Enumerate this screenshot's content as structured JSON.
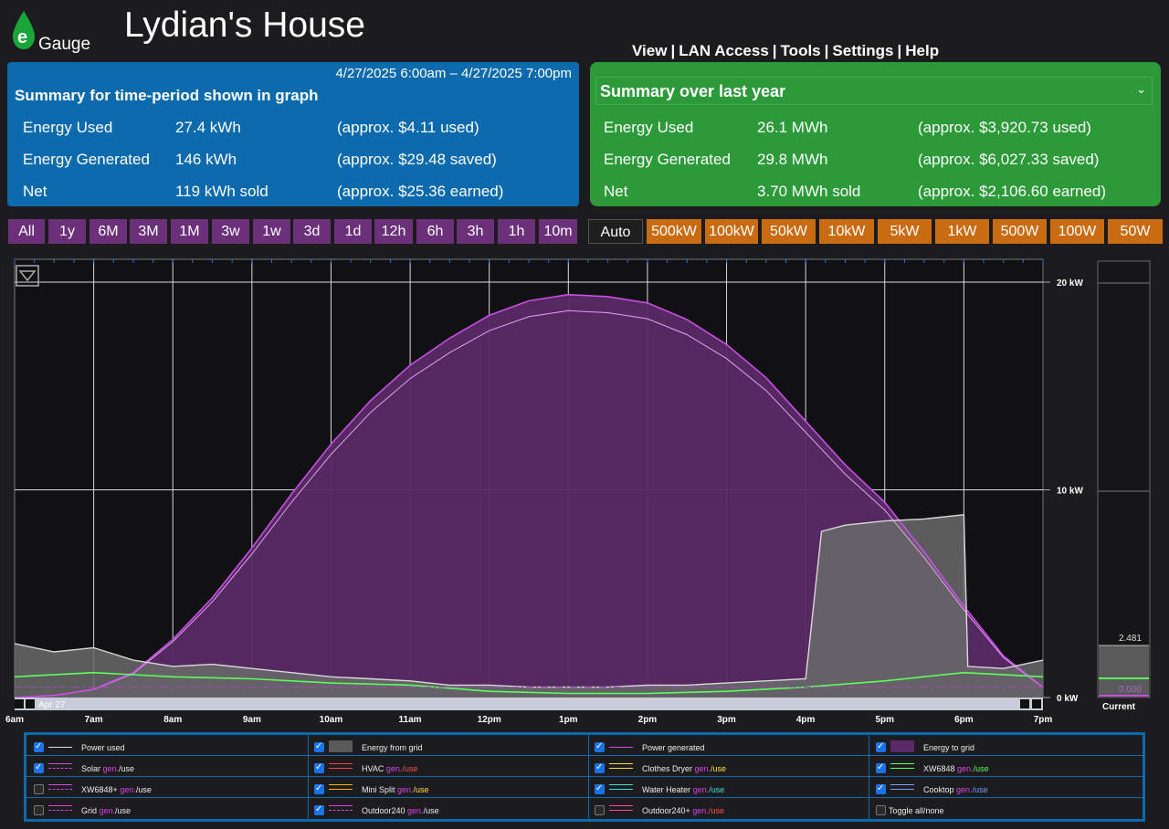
{
  "app": {
    "logo_text": "eGauge",
    "title": "Lydian's House"
  },
  "nav": {
    "view": "View",
    "lan": "LAN Access",
    "tools": "Tools",
    "settings": "Settings",
    "help": "Help"
  },
  "period_summary": {
    "date_range": "4/27/2025 6:00am – 4/27/2025 7:00pm",
    "heading": "Summary for time-period shown in graph",
    "rows": [
      {
        "label": "Energy Used",
        "value": "27.4 kWh",
        "note": "(approx. $4.11 used)"
      },
      {
        "label": "Energy Generated",
        "value": "146 kWh",
        "note": "(approx. $29.48 saved)"
      },
      {
        "label": "Net",
        "value": "119 kWh sold",
        "note": "(approx. $25.36 earned)"
      }
    ]
  },
  "year_summary": {
    "heading": "Summary over last year",
    "dropdown_icon": "chevron-down",
    "rows": [
      {
        "label": "Energy Used",
        "value": "26.1 MWh",
        "note": "(approx. $3,920.73 used)"
      },
      {
        "label": "Energy Generated",
        "value": "29.8 MWh",
        "note": "(approx. $6,027.33 saved)"
      },
      {
        "label": "Net",
        "value": "3.70 MWh sold",
        "note": "(approx. $2,106.60 earned)"
      }
    ]
  },
  "time_buttons": [
    "All",
    "1y",
    "6M",
    "3M",
    "1M",
    "3w",
    "1w",
    "3d",
    "1d",
    "12h",
    "6h",
    "3h",
    "1h",
    "10m"
  ],
  "scale_buttons": [
    "Auto",
    "500kW",
    "100kW",
    "50kW",
    "10kW",
    "5kW",
    "1kW",
    "500W",
    "100W",
    "50W"
  ],
  "colors": {
    "purple_button": "#6c2f7a",
    "orange_button": "#c86b12",
    "panel_blue": "#0c6aad",
    "panel_green": "#2d9a3a",
    "generated": "#c94ee6",
    "fill_grid": "#5a2a66"
  },
  "chart_data": {
    "type": "line",
    "date_label": "Apr 27",
    "x_ticks": [
      "6am",
      "7am",
      "8am",
      "9am",
      "10am",
      "11am",
      "12pm",
      "1pm",
      "2pm",
      "3pm",
      "4pm",
      "5pm",
      "6pm",
      "7pm"
    ],
    "y_ticks": [
      "20 kW",
      "10 kW",
      "0 kW"
    ],
    "ylim": [
      0,
      20
    ],
    "current_label": "Current",
    "current_values": [
      "2.481",
      "0.000"
    ],
    "series": [
      {
        "name": "Power generated",
        "color": "#c94ee6",
        "x": [
          6.0,
          6.5,
          7.0,
          7.5,
          8.0,
          8.5,
          9.0,
          9.5,
          10.0,
          10.5,
          11.0,
          11.5,
          12.0,
          12.5,
          13.0,
          13.5,
          14.0,
          14.5,
          15.0,
          15.5,
          16.0,
          16.5,
          17.0,
          17.5,
          18.0,
          18.5,
          19.0
        ],
        "y": [
          0.0,
          0.1,
          0.4,
          1.2,
          2.8,
          4.8,
          7.2,
          9.8,
          12.2,
          14.3,
          16.0,
          17.3,
          18.4,
          19.1,
          19.4,
          19.3,
          19.0,
          18.2,
          17.0,
          15.4,
          13.3,
          11.2,
          9.4,
          7.0,
          4.4,
          2.0,
          0.5
        ]
      },
      {
        "name": "Power used",
        "color": "#d8d8d8",
        "x": [
          6.0,
          6.5,
          7.0,
          7.5,
          8.0,
          8.5,
          9.0,
          9.5,
          10.0,
          10.5,
          11.0,
          11.5,
          12.0,
          12.5,
          13.0,
          13.5,
          14.0,
          14.5,
          15.0,
          15.5,
          16.0,
          16.2,
          16.5,
          17.0,
          17.5,
          18.0,
          18.05,
          18.5,
          19.0
        ],
        "y": [
          2.6,
          2.2,
          2.4,
          1.8,
          1.5,
          1.6,
          1.4,
          1.2,
          1.0,
          0.9,
          0.8,
          0.6,
          0.6,
          0.5,
          0.5,
          0.5,
          0.6,
          0.6,
          0.7,
          0.8,
          0.9,
          8.0,
          8.3,
          8.5,
          8.6,
          8.8,
          1.5,
          1.4,
          1.8
        ]
      },
      {
        "name": "XW6848",
        "color": "#5aff5a",
        "x": [
          6.0,
          7.0,
          8.0,
          9.0,
          10.0,
          11.0,
          12.0,
          13.0,
          14.0,
          15.0,
          16.0,
          17.0,
          18.0,
          19.0
        ],
        "y": [
          1.0,
          1.2,
          1.0,
          0.9,
          0.7,
          0.6,
          0.3,
          0.2,
          0.2,
          0.3,
          0.5,
          0.8,
          1.2,
          1.0
        ]
      },
      {
        "name": "Energy to grid",
        "color": "#9a4fb0",
        "x": [
          6.0,
          19.0
        ],
        "y": [
          0.5,
          0.5
        ]
      }
    ]
  },
  "legend": [
    {
      "label": "Power used",
      "checked": true,
      "gen": false,
      "use": "",
      "use_class": "",
      "swatch": "line-white"
    },
    {
      "label": "Energy from grid",
      "checked": true,
      "gen": false,
      "use": "",
      "use_class": "",
      "swatch": "box-gray"
    },
    {
      "label": "Power generated",
      "checked": true,
      "gen": false,
      "use": "",
      "use_class": "",
      "swatch": "line-purple"
    },
    {
      "label": "Energy to grid",
      "checked": true,
      "gen": false,
      "use": "",
      "use_class": "",
      "swatch": "box-purple"
    },
    {
      "label": "Solar",
      "checked": true,
      "gen": true,
      "use": "/use",
      "use_class": "",
      "swatch": "line-purple-dash"
    },
    {
      "label": "HVAC",
      "checked": true,
      "gen": true,
      "use": "/use",
      "use_class": "use-red",
      "swatch": "line-red"
    },
    {
      "label": "Clothes Dryer",
      "checked": true,
      "gen": true,
      "use": "/use",
      "use_class": "use-yellow",
      "swatch": "line-yellow"
    },
    {
      "label": "XW6848",
      "checked": true,
      "gen": true,
      "use": "/use",
      "use_class": "use-green",
      "swatch": "line-green"
    },
    {
      "label": "XW6848+",
      "checked": false,
      "gen": true,
      "use": "/use",
      "use_class": "",
      "swatch": "line-purple-dash"
    },
    {
      "label": "Mini Split",
      "checked": true,
      "gen": true,
      "use": "/use",
      "use_class": "use-yellow",
      "swatch": "line-orange"
    },
    {
      "label": "Water Heater",
      "checked": true,
      "gen": true,
      "use": "/use",
      "use_class": "use-cyan",
      "swatch": "line-cyan"
    },
    {
      "label": "Cooktop",
      "checked": true,
      "gen": true,
      "use": "/use",
      "use_class": "use-blue",
      "swatch": "line-blue"
    },
    {
      "label": "Grid",
      "checked": false,
      "gen": true,
      "use": "/use",
      "use_class": "",
      "swatch": "line-purple-dash"
    },
    {
      "label": "Outdoor240",
      "checked": true,
      "gen": true,
      "use": "/use",
      "use_class": "",
      "swatch": "line-purple-dash"
    },
    {
      "label": "Outdoor240+",
      "checked": false,
      "gen": true,
      "use": "/use",
      "use_class": "use-red",
      "swatch": "line-pink"
    },
    {
      "label": "Toggle all/none",
      "checked": false,
      "gen": false,
      "use": "",
      "use_class": "",
      "swatch": "none"
    }
  ],
  "gen_text": "gen."
}
